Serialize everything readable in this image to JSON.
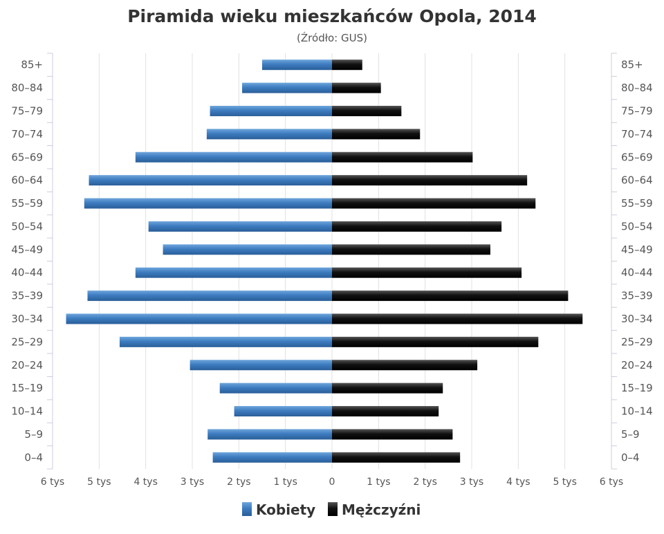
{
  "chart_data": {
    "type": "bar",
    "orientation": "horizontal-pyramid",
    "title": "Piramida wieku mieszkańców Opola, 2014",
    "subtitle": "(Źródło: GUS)",
    "categories": [
      "85+",
      "80–84",
      "75–79",
      "70–74",
      "65–69",
      "60–64",
      "55–59",
      "50–54",
      "45–49",
      "40–44",
      "35–39",
      "30–34",
      "25–29",
      "20–24",
      "15–19",
      "10–14",
      "5–9",
      "0–4"
    ],
    "series": [
      {
        "name": "Kobiety",
        "side": "left",
        "color": "#3d7cc0",
        "values": [
          1.5,
          1.93,
          2.62,
          2.69,
          4.22,
          5.22,
          5.32,
          3.94,
          3.63,
          4.22,
          5.25,
          5.71,
          4.56,
          3.05,
          2.41,
          2.1,
          2.67,
          2.56
        ]
      },
      {
        "name": "Mężczyźni",
        "side": "right",
        "color": "#111111",
        "values": [
          0.65,
          1.05,
          1.49,
          1.89,
          3.02,
          4.19,
          4.37,
          3.64,
          3.4,
          4.07,
          5.07,
          5.38,
          4.43,
          3.12,
          2.38,
          2.29,
          2.59,
          2.75
        ]
      }
    ],
    "xlim": [
      -6,
      6
    ],
    "x_unit": "tys",
    "x_ticks": [
      {
        "value": -6,
        "label": "6 tys"
      },
      {
        "value": -5,
        "label": "5 tys"
      },
      {
        "value": -4,
        "label": "4 tys"
      },
      {
        "value": -3,
        "label": "3 tys"
      },
      {
        "value": -2,
        "label": "2 tys"
      },
      {
        "value": -1,
        "label": "1 tys"
      },
      {
        "value": 0,
        "label": "0"
      },
      {
        "value": 1,
        "label": "1 tys"
      },
      {
        "value": 2,
        "label": "2 tys"
      },
      {
        "value": 3,
        "label": "3 tys"
      },
      {
        "value": 4,
        "label": "4 tys"
      },
      {
        "value": 5,
        "label": "5 tys"
      },
      {
        "value": 6,
        "label": "6 tys"
      }
    ],
    "grid": true,
    "legend": "bottom-center"
  }
}
